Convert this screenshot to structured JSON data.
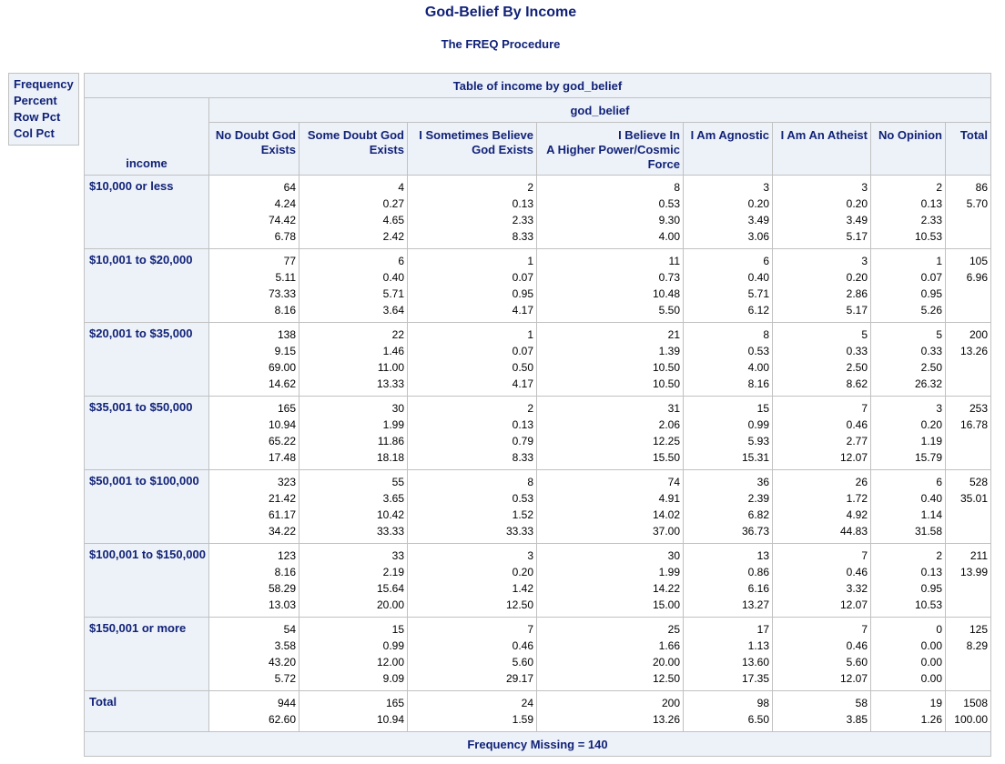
{
  "title": "God-Belief By Income",
  "subtitle": "The FREQ Procedure",
  "legend": [
    "Frequency",
    "Percent",
    "Row Pct",
    "Col Pct"
  ],
  "table": {
    "caption": "Table of income by god_belief",
    "column_var": "god_belief",
    "row_var": "income",
    "columns": [
      [
        "No Doubt God",
        "Exists"
      ],
      [
        "Some Doubt God",
        "Exists"
      ],
      [
        "I Sometimes Believe",
        "God Exists"
      ],
      [
        "I Believe In",
        "A Higher Power/Cosmic",
        "Force"
      ],
      [
        "I Am Agnostic"
      ],
      [
        "I Am An Atheist"
      ],
      [
        "No Opinion"
      ],
      [
        "Total"
      ]
    ],
    "rows": [
      {
        "label": "$10,000 or less",
        "cells": [
          [
            "64",
            "4.24",
            "74.42",
            "6.78"
          ],
          [
            "4",
            "0.27",
            "4.65",
            "2.42"
          ],
          [
            "2",
            "0.13",
            "2.33",
            "8.33"
          ],
          [
            "8",
            "0.53",
            "9.30",
            "4.00"
          ],
          [
            "3",
            "0.20",
            "3.49",
            "3.06"
          ],
          [
            "3",
            "0.20",
            "3.49",
            "5.17"
          ],
          [
            "2",
            "0.13",
            "2.33",
            "10.53"
          ],
          [
            "86",
            "5.70"
          ]
        ]
      },
      {
        "label": "$10,001 to $20,000",
        "cells": [
          [
            "77",
            "5.11",
            "73.33",
            "8.16"
          ],
          [
            "6",
            "0.40",
            "5.71",
            "3.64"
          ],
          [
            "1",
            "0.07",
            "0.95",
            "4.17"
          ],
          [
            "11",
            "0.73",
            "10.48",
            "5.50"
          ],
          [
            "6",
            "0.40",
            "5.71",
            "6.12"
          ],
          [
            "3",
            "0.20",
            "2.86",
            "5.17"
          ],
          [
            "1",
            "0.07",
            "0.95",
            "5.26"
          ],
          [
            "105",
            "6.96"
          ]
        ]
      },
      {
        "label": "$20,001 to $35,000",
        "cells": [
          [
            "138",
            "9.15",
            "69.00",
            "14.62"
          ],
          [
            "22",
            "1.46",
            "11.00",
            "13.33"
          ],
          [
            "1",
            "0.07",
            "0.50",
            "4.17"
          ],
          [
            "21",
            "1.39",
            "10.50",
            "10.50"
          ],
          [
            "8",
            "0.53",
            "4.00",
            "8.16"
          ],
          [
            "5",
            "0.33",
            "2.50",
            "8.62"
          ],
          [
            "5",
            "0.33",
            "2.50",
            "26.32"
          ],
          [
            "200",
            "13.26"
          ]
        ]
      },
      {
        "label": "$35,001 to $50,000",
        "cells": [
          [
            "165",
            "10.94",
            "65.22",
            "17.48"
          ],
          [
            "30",
            "1.99",
            "11.86",
            "18.18"
          ],
          [
            "2",
            "0.13",
            "0.79",
            "8.33"
          ],
          [
            "31",
            "2.06",
            "12.25",
            "15.50"
          ],
          [
            "15",
            "0.99",
            "5.93",
            "15.31"
          ],
          [
            "7",
            "0.46",
            "2.77",
            "12.07"
          ],
          [
            "3",
            "0.20",
            "1.19",
            "15.79"
          ],
          [
            "253",
            "16.78"
          ]
        ]
      },
      {
        "label": "$50,001 to $100,000",
        "cells": [
          [
            "323",
            "21.42",
            "61.17",
            "34.22"
          ],
          [
            "55",
            "3.65",
            "10.42",
            "33.33"
          ],
          [
            "8",
            "0.53",
            "1.52",
            "33.33"
          ],
          [
            "74",
            "4.91",
            "14.02",
            "37.00"
          ],
          [
            "36",
            "2.39",
            "6.82",
            "36.73"
          ],
          [
            "26",
            "1.72",
            "4.92",
            "44.83"
          ],
          [
            "6",
            "0.40",
            "1.14",
            "31.58"
          ],
          [
            "528",
            "35.01"
          ]
        ]
      },
      {
        "label": "$100,001 to $150,000",
        "cells": [
          [
            "123",
            "8.16",
            "58.29",
            "13.03"
          ],
          [
            "33",
            "2.19",
            "15.64",
            "20.00"
          ],
          [
            "3",
            "0.20",
            "1.42",
            "12.50"
          ],
          [
            "30",
            "1.99",
            "14.22",
            "15.00"
          ],
          [
            "13",
            "0.86",
            "6.16",
            "13.27"
          ],
          [
            "7",
            "0.46",
            "3.32",
            "12.07"
          ],
          [
            "2",
            "0.13",
            "0.95",
            "10.53"
          ],
          [
            "211",
            "13.99"
          ]
        ]
      },
      {
        "label": "$150,001 or more",
        "cells": [
          [
            "54",
            "3.58",
            "43.20",
            "5.72"
          ],
          [
            "15",
            "0.99",
            "12.00",
            "9.09"
          ],
          [
            "7",
            "0.46",
            "5.60",
            "29.17"
          ],
          [
            "25",
            "1.66",
            "20.00",
            "12.50"
          ],
          [
            "17",
            "1.13",
            "13.60",
            "17.35"
          ],
          [
            "7",
            "0.46",
            "5.60",
            "12.07"
          ],
          [
            "0",
            "0.00",
            "0.00",
            "0.00"
          ],
          [
            "125",
            "8.29"
          ]
        ]
      }
    ],
    "total_row": {
      "label": "Total",
      "cells": [
        [
          "944",
          "62.60"
        ],
        [
          "165",
          "10.94"
        ],
        [
          "24",
          "1.59"
        ],
        [
          "200",
          "13.26"
        ],
        [
          "98",
          "6.50"
        ],
        [
          "58",
          "3.85"
        ],
        [
          "19",
          "1.26"
        ],
        [
          "1508",
          "100.00"
        ]
      ]
    },
    "footer": "Frequency Missing = 140"
  }
}
